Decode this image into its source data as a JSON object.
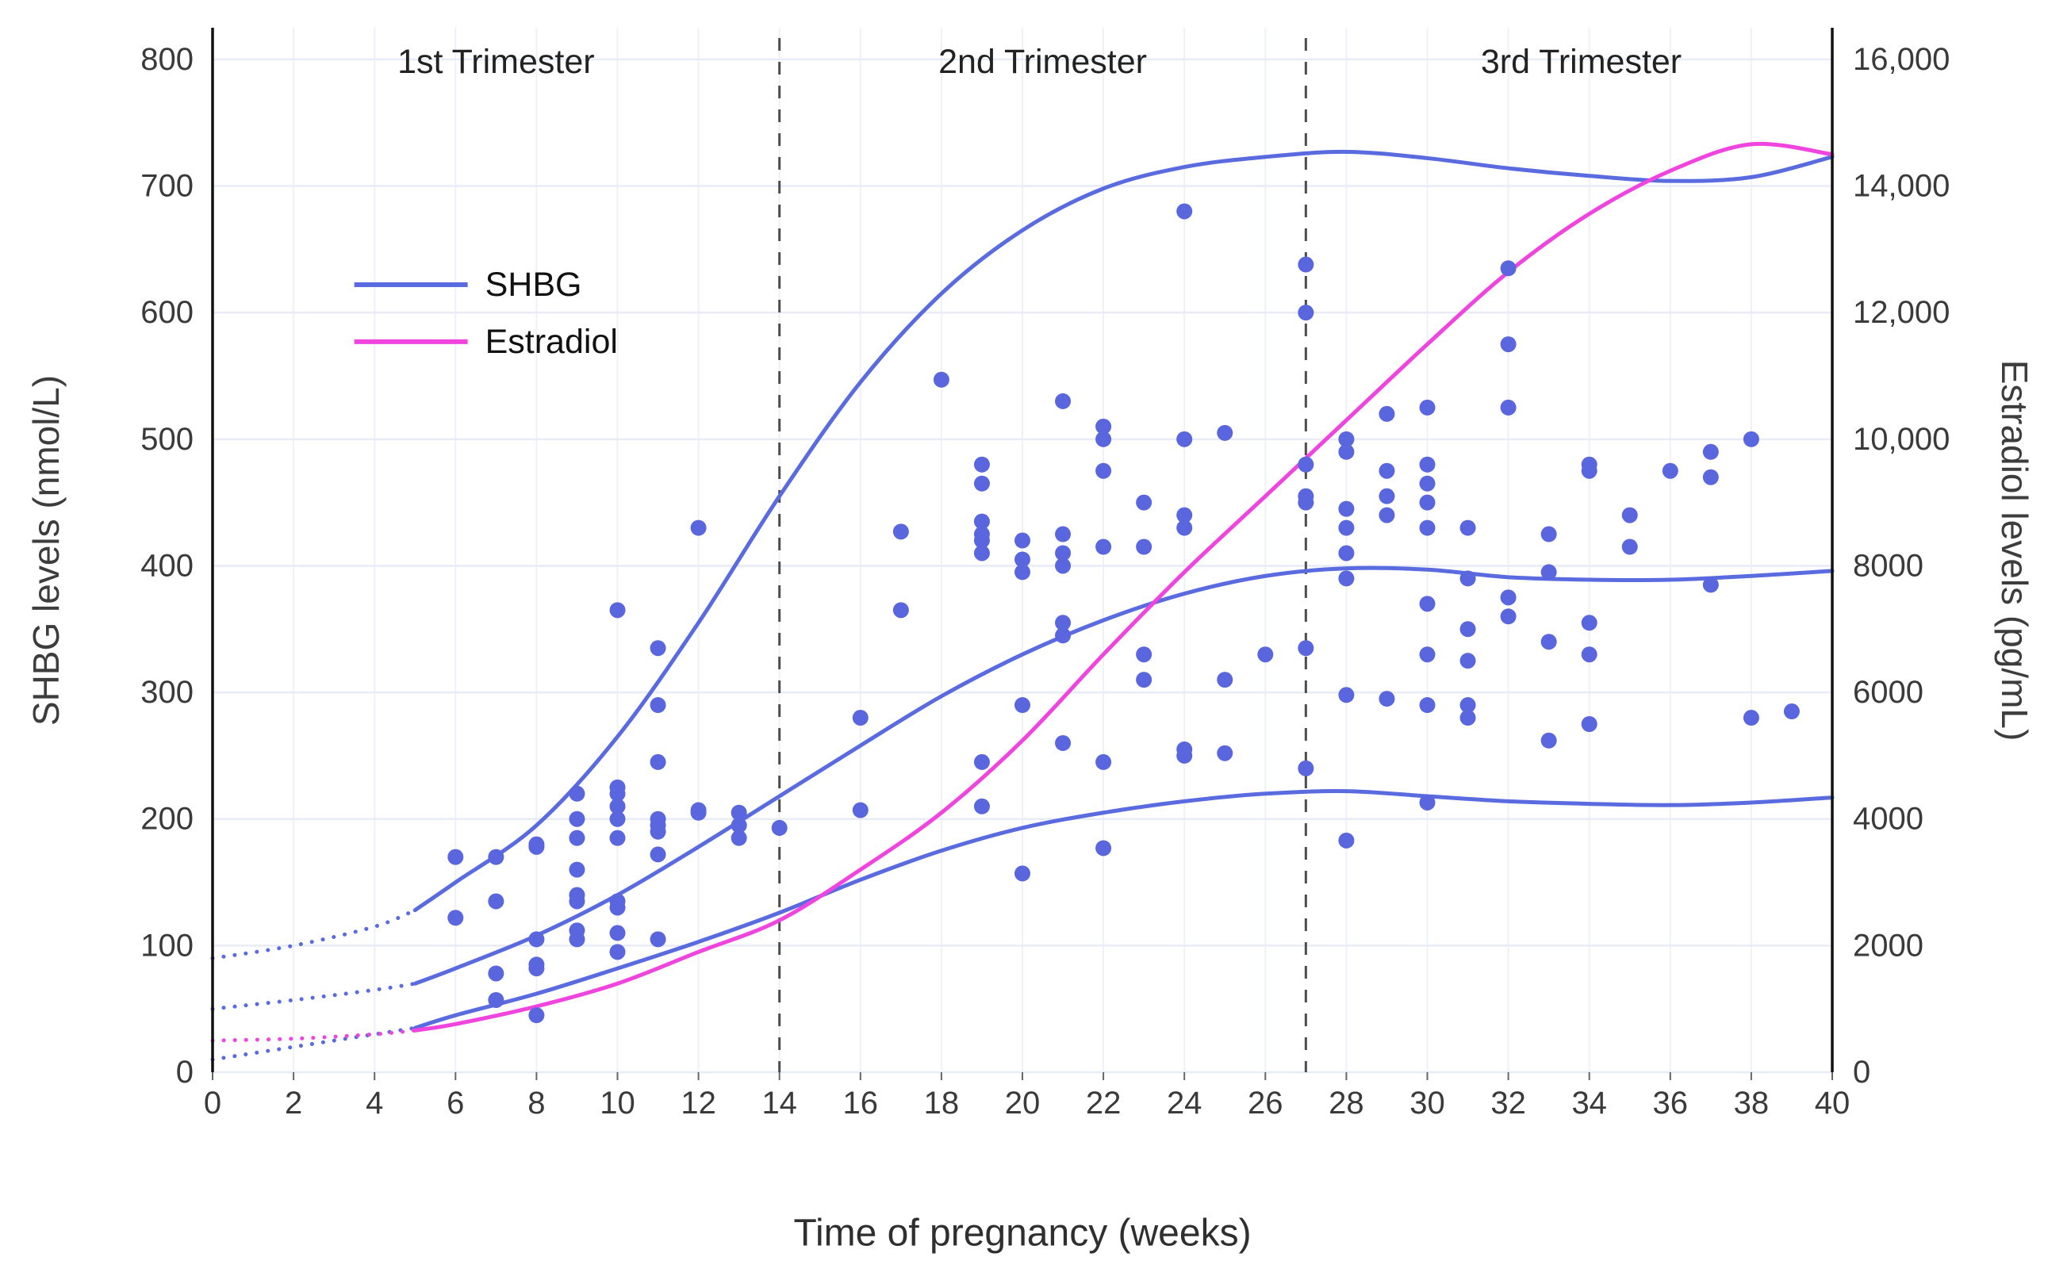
{
  "chart_data": {
    "type": "scatter",
    "title": "",
    "xlabel": "Time of pregnancy (weeks)",
    "ylabel_left": "SHBG levels (nmol/L)",
    "ylabel_right": "Estradiol levels (pg/mL)",
    "xlim": [
      0,
      40
    ],
    "ylim_left": [
      0,
      825
    ],
    "ylim_right": [
      0,
      16500
    ],
    "grid": true,
    "x_ticks": [
      0,
      2,
      4,
      6,
      8,
      10,
      12,
      14,
      16,
      18,
      20,
      22,
      24,
      26,
      28,
      30,
      32,
      34,
      36,
      38,
      40
    ],
    "y_left_tick_values": [
      0,
      100,
      200,
      300,
      400,
      500,
      600,
      700,
      800
    ],
    "y_left_tick_labels": [
      "0",
      "100",
      "200",
      "300",
      "400",
      "500",
      "600",
      "700",
      "800"
    ],
    "y_right_tick_values": [
      0,
      2000,
      4000,
      6000,
      8000,
      10000,
      12000,
      14000,
      16000
    ],
    "y_right_tick_labels": [
      "0",
      "2000",
      "4000",
      "6000",
      "8000",
      "10,000",
      "12,000",
      "14,000",
      "16,000"
    ],
    "trimester_lines_x": [
      14,
      27
    ],
    "annotations": [
      {
        "text": "1st Trimester",
        "x": 7.0,
        "y": 798
      },
      {
        "text": "2nd Trimester",
        "x": 20.5,
        "y": 798
      },
      {
        "text": "3rd Trimester",
        "x": 33.8,
        "y": 798
      }
    ],
    "legend": {
      "x_start": 3.5,
      "x_end": 6.3,
      "items": [
        {
          "label": "SHBG",
          "color": "#5A6BE0",
          "y": 622
        },
        {
          "label": "Estradiol",
          "color": "#F044DF",
          "y": 577
        }
      ]
    },
    "colors": {
      "shbg_line": "#5A6BE0",
      "shbg_dot": "#5A66DD",
      "estradiol_line": "#F044DF",
      "gridline": "#e8ecf7",
      "gridline_vertical": "#eef1fa",
      "dashed_line": "#4d4d4d",
      "axis_line": "#111111",
      "tick_text": "#3a3a3a"
    },
    "series": [
      {
        "name": "SHBG upper percentile curve",
        "axis": "left",
        "color": "#5A6BE0",
        "dotted_until": 5,
        "points": [
          [
            0,
            90
          ],
          [
            2,
            100
          ],
          [
            4,
            115
          ],
          [
            5,
            128
          ],
          [
            6,
            150
          ],
          [
            8,
            195
          ],
          [
            10,
            265
          ],
          [
            12,
            355
          ],
          [
            14,
            455
          ],
          [
            16,
            545
          ],
          [
            18,
            615
          ],
          [
            20,
            665
          ],
          [
            22,
            698
          ],
          [
            24,
            715
          ],
          [
            26,
            723
          ],
          [
            28,
            727
          ],
          [
            30,
            722
          ],
          [
            32,
            714
          ],
          [
            34,
            708
          ],
          [
            36,
            704
          ],
          [
            38,
            707
          ],
          [
            40,
            723
          ]
        ]
      },
      {
        "name": "SHBG median curve",
        "axis": "left",
        "color": "#5A6BE0",
        "dotted_until": 5,
        "points": [
          [
            0,
            50
          ],
          [
            2,
            57
          ],
          [
            4,
            65
          ],
          [
            5,
            70
          ],
          [
            6,
            82
          ],
          [
            8,
            108
          ],
          [
            10,
            140
          ],
          [
            12,
            178
          ],
          [
            14,
            218
          ],
          [
            16,
            258
          ],
          [
            18,
            297
          ],
          [
            20,
            330
          ],
          [
            22,
            357
          ],
          [
            24,
            378
          ],
          [
            26,
            392
          ],
          [
            28,
            398
          ],
          [
            30,
            397
          ],
          [
            32,
            391
          ],
          [
            34,
            389
          ],
          [
            36,
            389
          ],
          [
            38,
            392
          ],
          [
            40,
            396
          ]
        ]
      },
      {
        "name": "SHBG lower percentile curve",
        "axis": "left",
        "color": "#5A6BE0",
        "dotted_until": 5,
        "points": [
          [
            0,
            10
          ],
          [
            2,
            20
          ],
          [
            4,
            30
          ],
          [
            5,
            35
          ],
          [
            6,
            45
          ],
          [
            8,
            62
          ],
          [
            10,
            82
          ],
          [
            12,
            103
          ],
          [
            14,
            126
          ],
          [
            16,
            152
          ],
          [
            18,
            175
          ],
          [
            20,
            193
          ],
          [
            22,
            205
          ],
          [
            24,
            214
          ],
          [
            26,
            220
          ],
          [
            28,
            222
          ],
          [
            30,
            218
          ],
          [
            32,
            214
          ],
          [
            34,
            212
          ],
          [
            36,
            211
          ],
          [
            38,
            213
          ],
          [
            40,
            217
          ]
        ]
      },
      {
        "name": "Estradiol curve",
        "axis": "right",
        "color": "#F044DF",
        "dotted_until": 5,
        "points": [
          [
            0,
            500
          ],
          [
            2,
            530
          ],
          [
            4,
            600
          ],
          [
            5,
            660
          ],
          [
            6,
            760
          ],
          [
            8,
            1040
          ],
          [
            10,
            1400
          ],
          [
            12,
            1900
          ],
          [
            14,
            2400
          ],
          [
            16,
            3200
          ],
          [
            18,
            4100
          ],
          [
            20,
            5240
          ],
          [
            22,
            6600
          ],
          [
            24,
            7900
          ],
          [
            26,
            9100
          ],
          [
            28,
            10300
          ],
          [
            30,
            11500
          ],
          [
            32,
            12640
          ],
          [
            34,
            13560
          ],
          [
            36,
            14240
          ],
          [
            38,
            14660
          ],
          [
            40,
            14500
          ]
        ]
      }
    ],
    "scatter": {
      "name": "SHBG individual measurements",
      "axis": "left",
      "color": "#5A66DD",
      "points": [
        [
          6,
          122
        ],
        [
          6,
          170
        ],
        [
          7,
          57
        ],
        [
          7,
          78
        ],
        [
          7,
          135
        ],
        [
          7,
          170
        ],
        [
          8,
          45
        ],
        [
          8,
          82
        ],
        [
          8,
          85
        ],
        [
          8,
          105
        ],
        [
          8,
          178
        ],
        [
          8,
          180
        ],
        [
          9,
          105
        ],
        [
          9,
          112
        ],
        [
          9,
          135
        ],
        [
          9,
          140
        ],
        [
          9,
          160
        ],
        [
          9,
          185
        ],
        [
          9,
          200
        ],
        [
          9,
          220
        ],
        [
          10,
          95
        ],
        [
          10,
          110
        ],
        [
          10,
          130
        ],
        [
          10,
          135
        ],
        [
          10,
          185
        ],
        [
          10,
          200
        ],
        [
          10,
          210
        ],
        [
          10,
          220
        ],
        [
          10,
          225
        ],
        [
          10,
          365
        ],
        [
          11,
          105
        ],
        [
          11,
          172
        ],
        [
          11,
          190
        ],
        [
          11,
          195
        ],
        [
          11,
          200
        ],
        [
          11,
          245
        ],
        [
          11,
          290
        ],
        [
          11,
          335
        ],
        [
          12,
          205
        ],
        [
          12,
          207
        ],
        [
          12,
          430
        ],
        [
          13,
          185
        ],
        [
          13,
          195
        ],
        [
          13,
          205
        ],
        [
          14,
          193
        ],
        [
          16,
          207
        ],
        [
          16,
          280
        ],
        [
          17,
          365
        ],
        [
          17,
          427
        ],
        [
          18,
          547
        ],
        [
          19,
          210
        ],
        [
          19,
          245
        ],
        [
          19,
          410
        ],
        [
          19,
          420
        ],
        [
          19,
          425
        ],
        [
          19,
          435
        ],
        [
          19,
          465
        ],
        [
          19,
          480
        ],
        [
          20,
          157
        ],
        [
          20,
          290
        ],
        [
          20,
          395
        ],
        [
          20,
          405
        ],
        [
          20,
          420
        ],
        [
          21,
          260
        ],
        [
          21,
          345
        ],
        [
          21,
          355
        ],
        [
          21,
          400
        ],
        [
          21,
          410
        ],
        [
          21,
          425
        ],
        [
          21,
          530
        ],
        [
          22,
          177
        ],
        [
          22,
          245
        ],
        [
          22,
          415
        ],
        [
          22,
          475
        ],
        [
          22,
          500
        ],
        [
          22,
          510
        ],
        [
          23,
          310
        ],
        [
          23,
          330
        ],
        [
          23,
          415
        ],
        [
          23,
          450
        ],
        [
          24,
          250
        ],
        [
          24,
          255
        ],
        [
          24,
          430
        ],
        [
          24,
          440
        ],
        [
          24,
          500
        ],
        [
          24,
          680
        ],
        [
          25,
          252
        ],
        [
          25,
          310
        ],
        [
          25,
          505
        ],
        [
          26,
          330
        ],
        [
          27,
          240
        ],
        [
          27,
          335
        ],
        [
          27,
          450
        ],
        [
          27,
          455
        ],
        [
          27,
          480
        ],
        [
          27,
          600
        ],
        [
          27,
          638
        ],
        [
          28,
          183
        ],
        [
          28,
          298
        ],
        [
          28,
          390
        ],
        [
          28,
          410
        ],
        [
          28,
          430
        ],
        [
          28,
          445
        ],
        [
          28,
          490
        ],
        [
          28,
          500
        ],
        [
          29,
          295
        ],
        [
          29,
          440
        ],
        [
          29,
          455
        ],
        [
          29,
          475
        ],
        [
          29,
          520
        ],
        [
          30,
          213
        ],
        [
          30,
          290
        ],
        [
          30,
          330
        ],
        [
          30,
          370
        ],
        [
          30,
          430
        ],
        [
          30,
          450
        ],
        [
          30,
          465
        ],
        [
          30,
          480
        ],
        [
          30,
          525
        ],
        [
          31,
          280
        ],
        [
          31,
          290
        ],
        [
          31,
          325
        ],
        [
          31,
          350
        ],
        [
          31,
          390
        ],
        [
          31,
          430
        ],
        [
          32,
          360
        ],
        [
          32,
          375
        ],
        [
          32,
          525
        ],
        [
          32,
          575
        ],
        [
          32,
          635
        ],
        [
          33,
          262
        ],
        [
          33,
          340
        ],
        [
          33,
          395
        ],
        [
          33,
          425
        ],
        [
          34,
          275
        ],
        [
          34,
          330
        ],
        [
          34,
          355
        ],
        [
          34,
          475
        ],
        [
          34,
          480
        ],
        [
          35,
          415
        ],
        [
          35,
          440
        ],
        [
          36,
          475
        ],
        [
          37,
          385
        ],
        [
          37,
          470
        ],
        [
          37,
          490
        ],
        [
          38,
          280
        ],
        [
          38,
          500
        ],
        [
          39,
          285
        ]
      ]
    }
  }
}
